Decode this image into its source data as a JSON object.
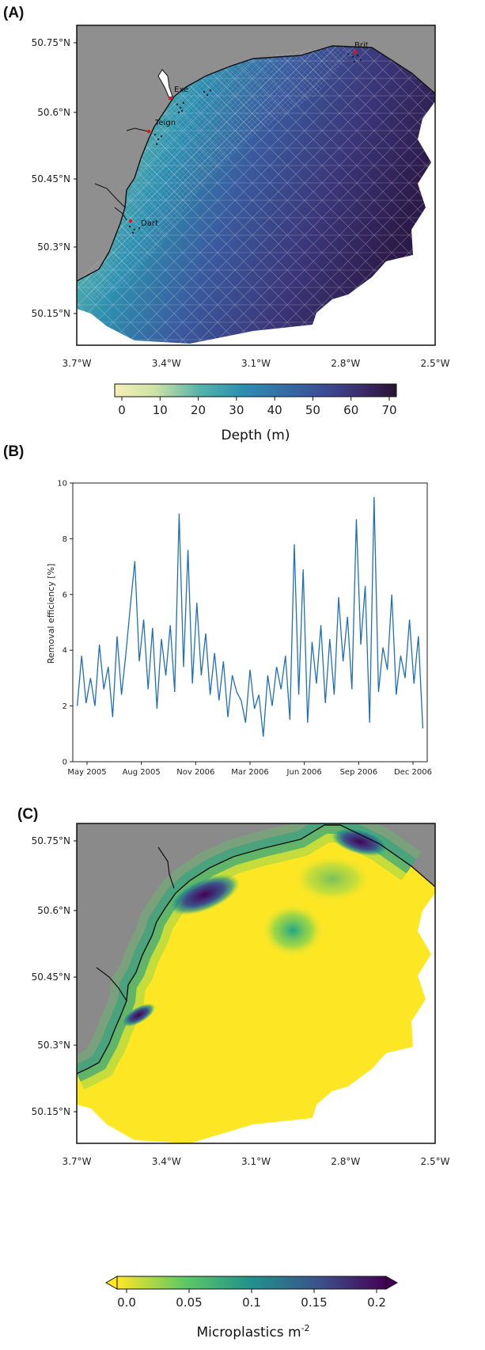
{
  "panels": {
    "a": {
      "letter": "(A)",
      "lat_ticks": [
        "50.75°N",
        "50.6°N",
        "50.45°N",
        "50.3°N",
        "50.15°N"
      ],
      "lon_ticks": [
        "3.7°W",
        "3.4°W",
        "3.1°W",
        "2.8°W",
        "2.5°W"
      ],
      "places": [
        "Brit",
        "Exe",
        "Teign",
        "Dart"
      ],
      "colorbar": {
        "ticks": [
          "0",
          "10",
          "20",
          "30",
          "40",
          "50",
          "60",
          "70"
        ],
        "label": "Depth (m)",
        "colors": [
          "#f5f0b4",
          "#d7e4a3",
          "#79c3a8",
          "#2fa0b2",
          "#2f7aaa",
          "#3b4f98",
          "#3c2d72",
          "#2a1535"
        ]
      }
    },
    "b": {
      "letter": "(B)"
    },
    "c": {
      "letter": "(C)",
      "lat_ticks": [
        "50.75°N",
        "50.6°N",
        "50.45°N",
        "50.3°N",
        "50.15°N"
      ],
      "lon_ticks": [
        "3.7°W",
        "3.4°W",
        "3.1°W",
        "2.8°W",
        "2.5°W"
      ],
      "colorbar": {
        "ticks": [
          "0.0",
          "0.05",
          "0.1",
          "0.15",
          "0.2"
        ],
        "label_main": "Microplastics m",
        "label_sup": "-2",
        "colors": [
          "#fde725",
          "#5ec962",
          "#21918c",
          "#3b528b",
          "#440154"
        ]
      }
    }
  },
  "chart_data": {
    "type": "line",
    "title": "",
    "xlabel": "",
    "ylabel": "Removal efficiency [%]",
    "ylim": [
      0,
      10
    ],
    "yticks": [
      "0",
      "2",
      "4",
      "6",
      "8",
      "10"
    ],
    "xtick_labels": [
      "May 2005",
      "Aug 2005",
      "Nov 2006",
      "Mar 2006",
      "Jun 2006",
      "Sep 2006",
      "Dec 2006"
    ],
    "xlim": [
      0,
      8
    ],
    "x": [
      0.1,
      0.2,
      0.3,
      0.4,
      0.5,
      0.6,
      0.7,
      0.8,
      0.9,
      1.0,
      1.1,
      1.2,
      1.3,
      1.4,
      1.5,
      1.6,
      1.7,
      1.8,
      1.9,
      2.0,
      2.1,
      2.2,
      2.3,
      2.4,
      2.5,
      2.6,
      2.7,
      2.8,
      2.9,
      3.0,
      3.1,
      3.2,
      3.3,
      3.4,
      3.5,
      3.6,
      3.7,
      3.8,
      3.9,
      4.0,
      4.1,
      4.2,
      4.3,
      4.4,
      4.5,
      4.6,
      4.7,
      4.8,
      4.9,
      5.0,
      5.1,
      5.2,
      5.3,
      5.4,
      5.5,
      5.6,
      5.7,
      5.8,
      5.9,
      6.0,
      6.1,
      6.2,
      6.3,
      6.4,
      6.5,
      6.6,
      6.7,
      6.8,
      6.9,
      7.0,
      7.1,
      7.2,
      7.3,
      7.4,
      7.5,
      7.6,
      7.7,
      7.8,
      7.9
    ],
    "series": [
      {
        "color": "#1f6fb4",
        "values": [
          2.0,
          3.8,
          2.1,
          3.0,
          2.0,
          4.2,
          2.6,
          3.4,
          1.6,
          4.5,
          2.4,
          3.9,
          5.6,
          7.2,
          3.6,
          5.1,
          2.6,
          4.8,
          1.9,
          4.4,
          3.1,
          4.9,
          2.5,
          8.9,
          3.4,
          7.6,
          2.8,
          5.7,
          3.1,
          4.6,
          2.4,
          3.9,
          2.2,
          3.6,
          1.6,
          3.1,
          2.5,
          2.2,
          1.4,
          3.3,
          1.9,
          2.4,
          0.9,
          3.1,
          2.0,
          3.4,
          2.6,
          3.8,
          1.5,
          7.8,
          2.4,
          6.9,
          1.4,
          4.3,
          2.8,
          4.9,
          2.1,
          4.4,
          2.4,
          5.9,
          3.6,
          5.2,
          2.6,
          8.7,
          4.2,
          6.3,
          1.4,
          9.5,
          2.5,
          4.1,
          3.3,
          6.0,
          2.4,
          3.8,
          3.0,
          5.1,
          2.8,
          4.5,
          1.2
        ]
      }
    ]
  }
}
